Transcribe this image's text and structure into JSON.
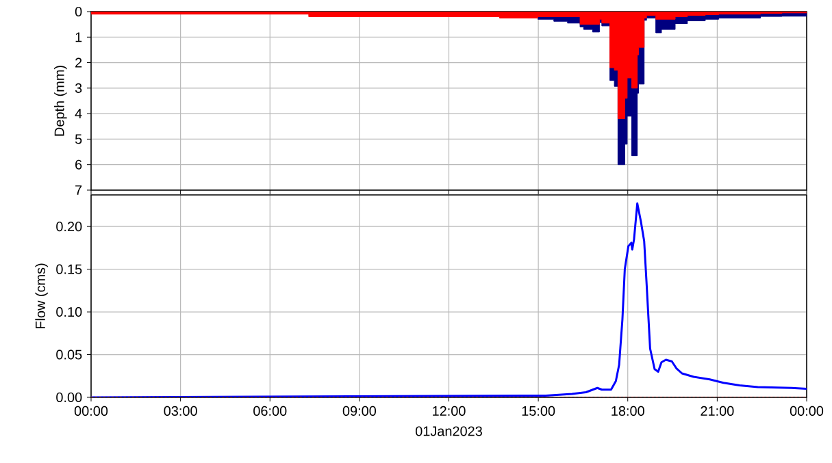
{
  "chart_data": [
    {
      "type": "area",
      "ylabel": "Depth (mm)",
      "xlim": [
        0,
        24
      ],
      "ylim": [
        7,
        0
      ],
      "yticks": [
        0,
        1,
        2,
        3,
        4,
        5,
        6,
        7
      ],
      "xticks": [
        {
          "value": 0,
          "label": null
        },
        {
          "value": 3,
          "label": null
        },
        {
          "value": 6,
          "label": null
        },
        {
          "value": 9,
          "label": null
        },
        {
          "value": 12,
          "label": null
        },
        {
          "value": 15,
          "label": null
        },
        {
          "value": 18,
          "label": null
        },
        {
          "value": 21,
          "label": null
        },
        {
          "value": 24,
          "label": null
        }
      ],
      "tick_labels": "y",
      "grid": true,
      "series": [
        {
          "color": "#000080",
          "x": [
            14.98,
            15.52,
            15.52,
            15.98,
            15.98,
            16.4,
            16.4,
            16.52,
            16.52,
            16.82,
            16.82,
            17.05,
            17.05,
            17.13,
            17.13,
            17.4,
            17.4,
            17.55,
            17.55,
            17.67,
            17.67,
            17.9,
            17.9,
            17.98,
            17.98,
            18.13,
            18.13,
            18.32,
            18.32,
            18.36,
            18.36,
            18.55,
            18.55,
            18.63,
            18.63,
            18.94,
            18.94,
            19.13,
            19.13,
            19.59,
            19.59,
            20.0,
            20.0,
            20.6,
            20.6,
            21.05,
            21.05,
            22.45,
            22.45,
            23.17,
            23.17,
            24
          ],
          "values": [
            0.3,
            0.3,
            0.38,
            0.38,
            0.45,
            0.45,
            0.6,
            0.6,
            0.7,
            0.7,
            0.8,
            0.8,
            0.43,
            0.43,
            0.56,
            0.56,
            2.7,
            2.7,
            2.93,
            2.93,
            6.0,
            6.0,
            5.2,
            5.2,
            4.1,
            4.1,
            5.65,
            5.65,
            3.2,
            3.2,
            2.84,
            2.84,
            0.34,
            0.34,
            0.25,
            0.25,
            0.83,
            0.83,
            0.7,
            0.7,
            0.47,
            0.47,
            0.36,
            0.36,
            0.3,
            0.3,
            0.25,
            0.25,
            0.19,
            0.19,
            0.18,
            0.18
          ]
        },
        {
          "color": "#ff0000",
          "x": [
            0,
            7.3,
            7.3,
            13.7,
            13.7,
            14.98,
            14.98,
            16.4,
            16.4,
            17.05,
            17.05,
            17.13,
            17.13,
            17.4,
            17.4,
            17.55,
            17.55,
            17.67,
            17.67,
            17.9,
            17.9,
            17.98,
            17.98,
            18.13,
            18.13,
            18.32,
            18.32,
            18.36,
            18.36,
            18.55,
            18.55,
            18.63,
            18.63,
            18.94,
            18.94,
            19.59,
            19.59,
            20.0,
            20.0,
            20.6,
            20.6,
            21.05,
            21.05,
            22.45,
            22.45,
            23.17,
            23.17,
            24
          ],
          "values": [
            0.1,
            0.1,
            0.2,
            0.2,
            0.25,
            0.25,
            0.2,
            0.2,
            0.5,
            0.5,
            0.3,
            0.3,
            0.45,
            0.45,
            2.2,
            2.2,
            2.3,
            2.3,
            4.2,
            4.2,
            3.4,
            3.4,
            2.6,
            2.6,
            3.0,
            3.0,
            1.7,
            1.7,
            1.4,
            1.4,
            0.25,
            0.25,
            0.15,
            0.15,
            0.3,
            0.3,
            0.2,
            0.2,
            0.15,
            0.15,
            0.12,
            0.12,
            0.1,
            0.1,
            0.07,
            0.07,
            0.05,
            0.05
          ]
        }
      ]
    },
    {
      "type": "line",
      "ylabel": "Flow (cms)",
      "xlabel": "01Jan2023",
      "xlim": [
        0,
        24
      ],
      "ylim": [
        0,
        0.237
      ],
      "yticks": [
        {
          "value": 0,
          "label": "0.00"
        },
        {
          "value": 0.05,
          "label": "0.05"
        },
        {
          "value": 0.1,
          "label": "0.10"
        },
        {
          "value": 0.15,
          "label": "0.15"
        },
        {
          "value": 0.2,
          "label": "0.20"
        }
      ],
      "xticks": [
        {
          "value": 0,
          "label": "00:00"
        },
        {
          "value": 3,
          "label": "03:00"
        },
        {
          "value": 6,
          "label": "06:00"
        },
        {
          "value": 9,
          "label": "09:00"
        },
        {
          "value": 12,
          "label": "12:00"
        },
        {
          "value": 15,
          "label": "15:00"
        },
        {
          "value": 18,
          "label": "18:00"
        },
        {
          "value": 21,
          "label": "21:00"
        },
        {
          "value": 24,
          "label": "00:00"
        }
      ],
      "grid": true,
      "series": [
        {
          "color": "#0000ff",
          "line_style": "solid",
          "x": [
            0,
            15.25,
            16.13,
            16.6,
            16.98,
            17.13,
            17.44,
            17.6,
            17.71,
            17.82,
            17.9,
            18.02,
            18.12,
            18.15,
            18.21,
            18.32,
            18.44,
            18.55,
            18.63,
            18.75,
            18.9,
            19.02,
            19.13,
            19.28,
            19.48,
            19.63,
            19.82,
            20.21,
            20.75,
            21.21,
            21.75,
            22.36,
            23.5,
            24.0
          ],
          "values": [
            0,
            0.002,
            0.004,
            0.006,
            0.011,
            0.009,
            0.009,
            0.019,
            0.038,
            0.091,
            0.15,
            0.177,
            0.181,
            0.173,
            0.185,
            0.227,
            0.206,
            0.183,
            0.134,
            0.057,
            0.033,
            0.03,
            0.041,
            0.044,
            0.042,
            0.034,
            0.028,
            0.024,
            0.021,
            0.017,
            0.014,
            0.012,
            0.011,
            0.01
          ]
        },
        {
          "color": "#a52a2a",
          "line_style": "dashed",
          "x": [
            0,
            24
          ],
          "values": [
            0,
            0
          ]
        }
      ]
    }
  ]
}
